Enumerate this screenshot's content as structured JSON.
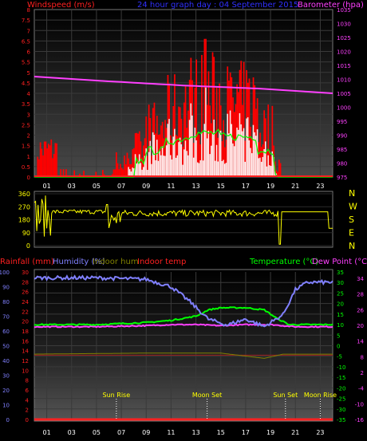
{
  "header": {
    "left": "Windspeed (m/s)",
    "center": "24 hour graph day : 04 September 2015",
    "right": "Barometer (hpa)"
  },
  "colors": {
    "red": "#ff2020",
    "blue": "#3030ff",
    "magenta": "#ff40ff",
    "yellow": "#ffff00",
    "green": "#00ff00",
    "lavender": "#8080ff",
    "pale": "#ffeeee",
    "bar": "#ff0000",
    "gray": "#808080"
  },
  "chart_data": [
    {
      "type": "area",
      "name": "wind",
      "xlabel": "",
      "ylabel": "Windspeed (m/s)",
      "x_ticks": [
        "01",
        "03",
        "05",
        "07",
        "09",
        "11",
        "13",
        "15",
        "17",
        "19",
        "21",
        "23"
      ],
      "y_left_ticks": [
        "0",
        "0.5",
        "1",
        "1.5",
        "2",
        "2.5",
        "3",
        "3.5",
        "4",
        "4.5",
        "5",
        "5.5",
        "6",
        "6.5",
        "7",
        "7.5",
        "8"
      ],
      "y_left_range": [
        0,
        8
      ],
      "y_right_label": "Barometer (hpa)",
      "y_right_ticks": [
        "975",
        "980",
        "985",
        "990",
        "995",
        "1000",
        "1005",
        "1010",
        "1015",
        "1020",
        "1025",
        "1030",
        "1035"
      ],
      "y_right_range": [
        975,
        1035
      ],
      "barometer": {
        "hours": [
          0,
          6,
          12,
          18,
          24
        ],
        "values": [
          1011.0,
          1009.3,
          1007.8,
          1006.7,
          1005.0
        ]
      },
      "gust_peak": 6.6
    },
    {
      "type": "scatter",
      "name": "wind direction",
      "y_ticks": [
        "360",
        "270",
        "180",
        "90",
        "0"
      ],
      "y_range": [
        0,
        360
      ],
      "direction_labels": [
        "N",
        "W",
        "S",
        "E",
        "N"
      ],
      "typical_direction": 230
    },
    {
      "type": "line",
      "name": "temperature and humidity",
      "legend": [
        "Rainfall (mm)",
        "Humidity (%)",
        "Indoor hum",
        "Indoor temp",
        "Temperature (°C)",
        "Dew Point (°C)"
      ],
      "humidity_ticks": [
        "0",
        "10",
        "20",
        "30",
        "40",
        "50",
        "60",
        "70",
        "80",
        "90",
        "100"
      ],
      "rain_ticks": [
        "0",
        "2",
        "4",
        "6",
        "8",
        "10",
        "12",
        "14",
        "16",
        "18",
        "20",
        "22",
        "24",
        "26",
        "28",
        "30"
      ],
      "temp_ticks": [
        "-35",
        "-30",
        "-25",
        "-20",
        "-15",
        "-10",
        "-5",
        "0",
        "5",
        "10",
        "15",
        "20",
        "25",
        "30",
        "35"
      ],
      "dew_ticks": [
        "-16",
        "-10",
        "-4",
        "2",
        "8",
        "14",
        "20",
        "26",
        "28",
        "34"
      ],
      "humidity": {
        "hours": [
          0,
          5,
          9,
          11,
          12.5,
          14,
          15.5,
          17,
          18.5,
          20,
          21,
          22,
          24
        ],
        "values": [
          96,
          96,
          95,
          90,
          80,
          68,
          64,
          68,
          63,
          71,
          88,
          93,
          93
        ]
      },
      "temperature": {
        "hours": [
          0,
          5,
          9,
          11,
          13,
          14,
          15,
          17,
          18.5,
          19.5,
          20.5,
          21,
          24
        ],
        "values": [
          10,
          10,
          11,
          12,
          14,
          17,
          18,
          18,
          17,
          13,
          10,
          10,
          10
        ]
      },
      "dew_point": {
        "hours": [
          0,
          5,
          9,
          11,
          13,
          15,
          17,
          19,
          21,
          24
        ],
        "values": [
          9,
          9,
          9.5,
          10,
          10,
          9.5,
          10,
          10,
          9,
          9
        ]
      },
      "indoor_temp": {
        "hours": [
          0,
          24
        ],
        "values": [
          -4.5,
          -4.5
        ]
      },
      "indoor_hum": {
        "hours": [
          0,
          9,
          15,
          18.5,
          20,
          24
        ],
        "values": [
          -4,
          -3.5,
          -3.5,
          -6,
          -4,
          -4
        ]
      },
      "rainfall": 0,
      "events": [
        {
          "label": "Sun Rise",
          "hour": 6.6
        },
        {
          "label": "Moon Set",
          "hour": 13.9
        },
        {
          "label": "Sun Set",
          "hour": 20.2
        },
        {
          "label": "Moon Rise",
          "hour": 23.0
        }
      ]
    }
  ]
}
